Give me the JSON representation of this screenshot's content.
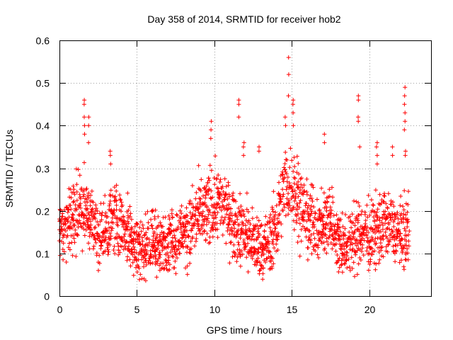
{
  "chart_data": {
    "type": "scatter",
    "title": "Day 358 of 2014, SRMTID for receiver hob2",
    "xlabel": "GPS time / hours",
    "ylabel": "SRMTID / TECUs",
    "xlim": [
      0,
      24
    ],
    "ylim": [
      0,
      0.6
    ],
    "xticks": [
      "0",
      "5",
      "10",
      "15",
      "20"
    ],
    "xtick_values": [
      0,
      5,
      10,
      15,
      20
    ],
    "yticks": [
      "0",
      "0.1",
      "0.2",
      "0.3",
      "0.4",
      "0.5",
      "0.6"
    ],
    "ytick_values": [
      0,
      0.1,
      0.2,
      0.3,
      0.4,
      0.5,
      0.6
    ],
    "grid": true,
    "marker": "+",
    "color": "#ff0000",
    "x_range_data": [
      0,
      22.6
    ],
    "series": [
      {
        "name": "SRMTID",
        "trend_x": [
          0,
          0.5,
          1.0,
          1.5,
          2.0,
          2.5,
          3.0,
          3.5,
          4.0,
          4.5,
          5.0,
          5.5,
          6.0,
          6.5,
          7.0,
          7.5,
          8.0,
          8.5,
          9.0,
          9.5,
          10.0,
          10.5,
          11.0,
          11.5,
          12.0,
          12.5,
          13.0,
          13.5,
          14.0,
          14.5,
          15.0,
          15.5,
          16.0,
          16.5,
          17.0,
          17.5,
          18.0,
          18.5,
          19.0,
          19.5,
          20.0,
          20.5,
          21.0,
          21.5,
          22.0,
          22.6
        ],
        "trend_y": [
          0.15,
          0.17,
          0.2,
          0.22,
          0.18,
          0.14,
          0.15,
          0.19,
          0.17,
          0.15,
          0.12,
          0.11,
          0.13,
          0.12,
          0.13,
          0.14,
          0.15,
          0.16,
          0.19,
          0.2,
          0.22,
          0.21,
          0.19,
          0.16,
          0.15,
          0.12,
          0.11,
          0.12,
          0.17,
          0.24,
          0.26,
          0.22,
          0.18,
          0.16,
          0.17,
          0.18,
          0.14,
          0.12,
          0.13,
          0.15,
          0.14,
          0.15,
          0.17,
          0.16,
          0.14,
          0.16
        ],
        "spikes": [
          {
            "x": 1.6,
            "values": [
              0.4,
              0.42,
              0.45,
              0.46,
              0.38
            ]
          },
          {
            "x": 1.9,
            "values": [
              0.36,
              0.4,
              0.42
            ]
          },
          {
            "x": 3.3,
            "values": [
              0.31,
              0.33,
              0.34
            ]
          },
          {
            "x": 9.8,
            "values": [
              0.37,
              0.39,
              0.41
            ]
          },
          {
            "x": 11.6,
            "values": [
              0.42,
              0.45,
              0.46
            ]
          },
          {
            "x": 11.9,
            "values": [
              0.33,
              0.35,
              0.36
            ]
          },
          {
            "x": 12.9,
            "values": [
              0.34,
              0.35
            ]
          },
          {
            "x": 14.6,
            "values": [
              0.4,
              0.42
            ]
          },
          {
            "x": 14.8,
            "values": [
              0.47,
              0.52,
              0.56
            ]
          },
          {
            "x": 15.1,
            "values": [
              0.4,
              0.43,
              0.45,
              0.46
            ]
          },
          {
            "x": 17.1,
            "values": [
              0.36,
              0.38
            ]
          },
          {
            "x": 19.3,
            "values": [
              0.41,
              0.42,
              0.46,
              0.47
            ]
          },
          {
            "x": 19.4,
            "values": [
              0.35
            ]
          },
          {
            "x": 20.5,
            "values": [
              0.31,
              0.33,
              0.35,
              0.36
            ]
          },
          {
            "x": 21.5,
            "values": [
              0.33,
              0.35
            ]
          },
          {
            "x": 22.3,
            "values": [
              0.39,
              0.41,
              0.43,
              0.45,
              0.47,
              0.49
            ]
          },
          {
            "x": 22.35,
            "values": [
              0.33,
              0.34
            ]
          }
        ]
      }
    ]
  }
}
